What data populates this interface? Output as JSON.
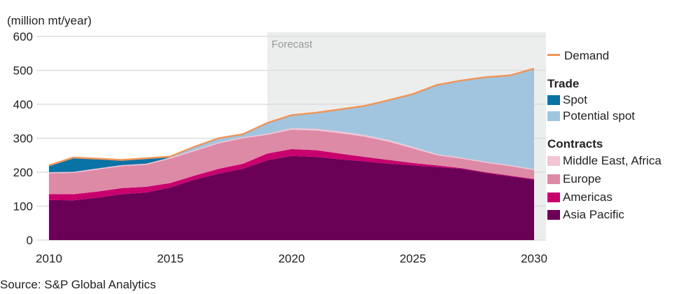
{
  "chart_data": {
    "type": "area",
    "stacked": true,
    "unit_label": "(million mt/year)",
    "source": "Source: S&P Global Analytics",
    "forecast_label": "Forecast",
    "forecast_start": 2019,
    "x": [
      2010,
      2011,
      2012,
      2013,
      2014,
      2015,
      2016,
      2017,
      2018,
      2019,
      2020,
      2021,
      2022,
      2023,
      2024,
      2025,
      2026,
      2027,
      2028,
      2029,
      2030
    ],
    "xticks": [
      "2010",
      "2015",
      "2020",
      "2025",
      "2030"
    ],
    "yticks": [
      "0",
      "100",
      "200",
      "300",
      "400",
      "500",
      "600"
    ],
    "ylim": [
      0,
      600
    ],
    "grid": true,
    "legend_position": "right",
    "series": [
      {
        "name": "Asia Pacific",
        "group": "Contracts",
        "color": "#6b0057",
        "values": [
          118,
          117,
          125,
          135,
          140,
          155,
          178,
          196,
          210,
          235,
          248,
          245,
          238,
          232,
          225,
          220,
          215,
          210,
          198,
          188,
          178
        ]
      },
      {
        "name": "Americas",
        "group": "Contracts",
        "color": "#c8006e",
        "values": [
          17,
          18,
          18,
          18,
          17,
          13,
          12,
          14,
          15,
          20,
          20,
          20,
          17,
          13,
          11,
          7,
          5,
          2,
          2,
          2,
          2
        ]
      },
      {
        "name": "Europe",
        "group": "Contracts",
        "color": "#dd8aa6",
        "values": [
          62,
          63,
          65,
          65,
          65,
          72,
          72,
          75,
          75,
          55,
          57,
          58,
          60,
          60,
          54,
          43,
          30,
          28,
          28,
          28,
          26
        ]
      },
      {
        "name": "Middle East, Africa",
        "group": "Contracts",
        "color": "#f2c4d4",
        "values": [
          3,
          3,
          3,
          3,
          3,
          3,
          3,
          3,
          3,
          3,
          5,
          5,
          5,
          5,
          5,
          5,
          3,
          3,
          3,
          3,
          3
        ]
      },
      {
        "name": "Spot",
        "group": "Trade",
        "color": "#0a73a6",
        "values": [
          20,
          42,
          29,
          15,
          16,
          0,
          0,
          0,
          0,
          0,
          0,
          0,
          0,
          0,
          0,
          0,
          0,
          0,
          0,
          0,
          0
        ]
      },
      {
        "name": "Potential spot",
        "group": "Trade",
        "color": "#a1c5df",
        "values": [
          0,
          0,
          0,
          0,
          0,
          3,
          10,
          12,
          9,
          32,
          38,
          47,
          65,
          85,
          117,
          155,
          204,
          227,
          249,
          264,
          296
        ]
      }
    ],
    "line": {
      "name": "Demand",
      "color": "#f0955a",
      "values": [
        220,
        243,
        240,
        236,
        241,
        246,
        275,
        300,
        312,
        345,
        368,
        375,
        385,
        395,
        412,
        430,
        457,
        470,
        480,
        485,
        505
      ]
    },
    "legend": {
      "trade_title": "Trade",
      "contracts_title": "Contracts"
    }
  }
}
